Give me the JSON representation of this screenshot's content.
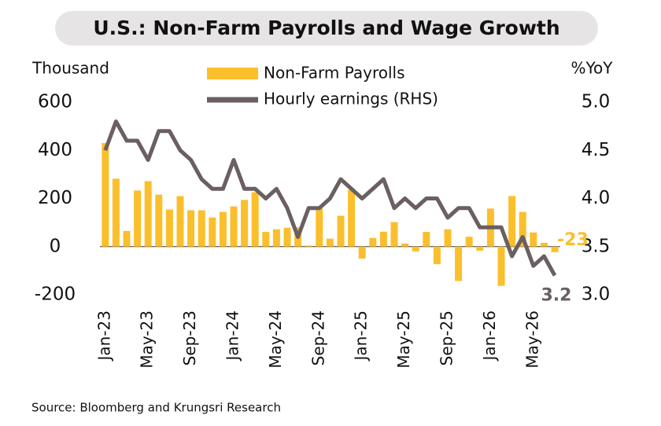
{
  "chart_data": {
    "type": "bar",
    "title": "U.S.: Non-Farm Payrolls and Wage Growth",
    "y_label": "Thousand",
    "y2_label": "%YoY",
    "source": "Source: Bloomberg and Krungsri Research",
    "categories": [
      "Jan-23",
      null,
      null,
      null,
      "May-23",
      null,
      null,
      null,
      "Sep-23",
      null,
      null,
      null,
      "Jan-24",
      null,
      null,
      null,
      "May-24",
      null,
      null,
      null,
      "Sep-24",
      null,
      null,
      null,
      "Jan-25",
      null,
      null,
      null,
      "May-25",
      null,
      null,
      null,
      "Sep-25",
      null,
      null,
      null,
      "Jan-26",
      null,
      null,
      null,
      "May-26",
      null,
      null
    ],
    "series": [
      {
        "name": "Non-Farm Payrolls",
        "type": "bar",
        "color": "#fbbf2c",
        "values": [
          430,
          282,
          65,
          233,
          272,
          216,
          154,
          210,
          151,
          151,
          121,
          144,
          167,
          194,
          226,
          61,
          72,
          78,
          80,
          4,
          158,
          33,
          128,
          236,
          -50,
          36,
          62,
          102,
          13,
          -20,
          61,
          -73,
          72,
          -143,
          41,
          -17,
          158,
          -163,
          210,
          144,
          59,
          16,
          -23
        ]
      },
      {
        "name": "Hourly earnings (RHS)",
        "type": "line",
        "axis": "y2",
        "color": "#6b5f61",
        "values": [
          4.5,
          4.8,
          4.6,
          4.6,
          4.4,
          4.7,
          4.7,
          4.5,
          4.4,
          4.2,
          4.1,
          4.1,
          4.4,
          4.1,
          4.1,
          4.0,
          4.1,
          3.9,
          3.6,
          3.9,
          3.9,
          4.0,
          4.2,
          4.1,
          4.0,
          4.1,
          4.2,
          3.9,
          4.0,
          3.9,
          4.0,
          4.0,
          3.8,
          3.9,
          3.9,
          3.7,
          3.7,
          3.7,
          3.4,
          3.6,
          3.3,
          3.4,
          3.2
        ]
      }
    ],
    "ylim": [
      -200,
      600
    ],
    "yticks": [
      600,
      400,
      200,
      0,
      -200
    ],
    "y2lim": [
      3.0,
      5.0
    ],
    "y2ticks": [
      {
        "value": 5.0,
        "label": "5.0"
      },
      {
        "value": 4.5,
        "label": "4.5"
      },
      {
        "value": 4.0,
        "label": "4.0"
      },
      {
        "value": 3.5,
        "label": "3.5"
      },
      {
        "value": 3.0,
        "label": "3.0"
      }
    ],
    "grid": false
  }
}
